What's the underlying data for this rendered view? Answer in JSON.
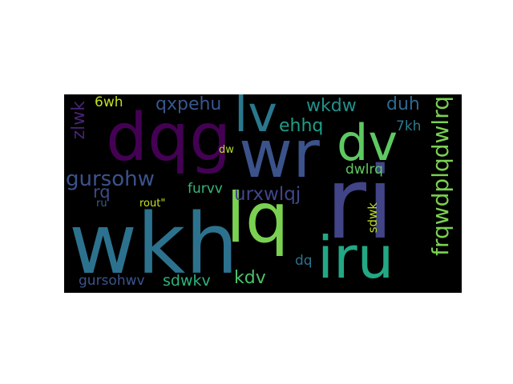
{
  "words": [
    {
      "text": "wkh",
      "color": "#2c728e"
    },
    {
      "text": "ri",
      "color": "#414487"
    },
    {
      "text": "dqg",
      "color": "#440154"
    },
    {
      "text": "wr",
      "color": "#3b528b"
    },
    {
      "text": "lq",
      "color": "#7ad151"
    },
    {
      "text": "iru",
      "color": "#22a884"
    },
    {
      "text": "dv",
      "color": "#5ec962"
    },
    {
      "text": "lv",
      "color": "#2a788e"
    },
    {
      "text": "frqwdplqdwlrq",
      "color": "#7ad151"
    },
    {
      "text": "gursohw",
      "color": "#3b528b"
    },
    {
      "text": "urxwlqj",
      "color": "#404688"
    },
    {
      "text": "qxpehu",
      "color": "#39568c"
    },
    {
      "text": "wkdw",
      "color": "#21918c"
    },
    {
      "text": "duh",
      "color": "#31688e"
    },
    {
      "text": "ehhq",
      "color": "#1f9e89"
    },
    {
      "text": "zlwk",
      "color": "#482475"
    },
    {
      "text": "6wh",
      "color": "#bddf26"
    },
    {
      "text": "7kh",
      "color": "#287c8e"
    },
    {
      "text": "dwlrq",
      "color": "#5ec962"
    },
    {
      "text": "dw",
      "color": "#b5de2b"
    },
    {
      "text": "rq",
      "color": "#3e4a89"
    },
    {
      "text": "furvv",
      "color": "#35b779"
    },
    {
      "text": "ru",
      "color": "#355f8d"
    },
    {
      "text": "rout\"",
      "color": "#c8e020"
    },
    {
      "text": "sdwk",
      "color": "#bddf26"
    },
    {
      "text": "kdv",
      "color": "#4ac16d"
    },
    {
      "text": "dq",
      "color": "#2c728e"
    },
    {
      "text": "gursohwv",
      "color": "#3a548c"
    },
    {
      "text": "sdwkv",
      "color": "#2db27d"
    }
  ]
}
